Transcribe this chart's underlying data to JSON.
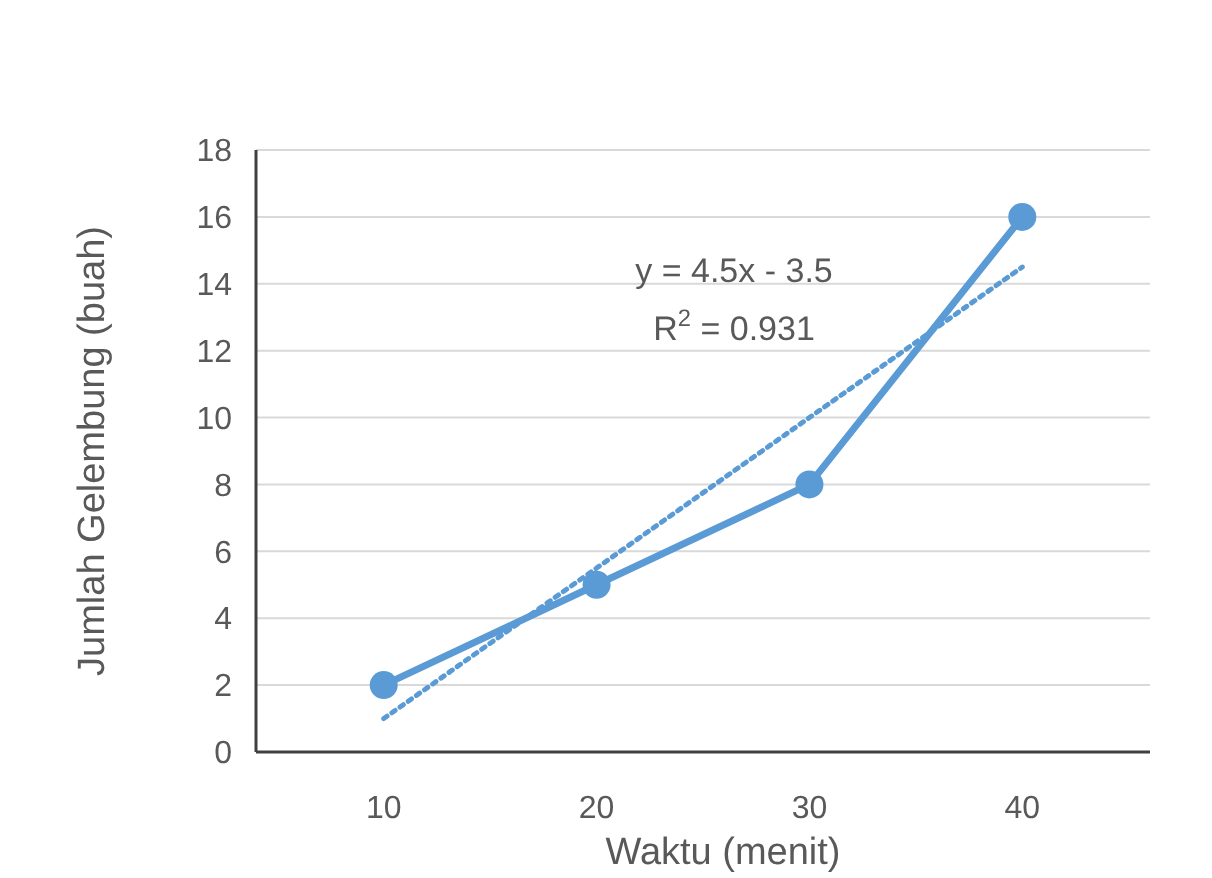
{
  "chart_data": {
    "type": "line",
    "xlabel": "Waktu (menit)",
    "ylabel": "Jumlah Gelembung (buah)",
    "categories": [
      "10",
      "20",
      "30",
      "40"
    ],
    "series": [
      {
        "color": "#5b9bd5",
        "values": [
          2,
          5,
          8,
          16
        ],
        "marker": "circle",
        "line_style": "solid"
      },
      {
        "color": "#5b9bd5",
        "values": [
          1,
          5.5,
          10,
          14.5
        ],
        "marker": "none",
        "line_style": "dotted"
      }
    ],
    "ylim": [
      0,
      18
    ],
    "yticks": [
      0,
      2,
      4,
      6,
      8,
      10,
      12,
      14,
      16,
      18
    ],
    "grid": "y",
    "annotations": [
      "y = 4.5x - 3.5",
      "R$^{2}$ = 0.931"
    ]
  }
}
